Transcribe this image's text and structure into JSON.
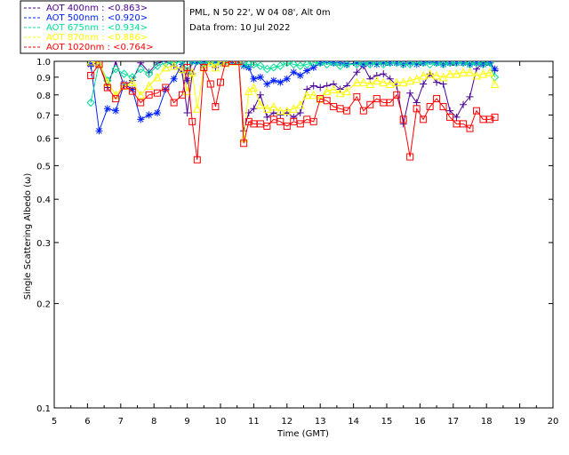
{
  "header": {
    "site_line": "PML, N 50 22', W 04 08', Alt 0m",
    "date_line": "Data from: 10 Jul 2022"
  },
  "chart_data": {
    "type": "line",
    "title": "",
    "xlabel": "Time (GMT)",
    "ylabel": "Single Scattering Albedo (ω)",
    "xlim": [
      5,
      20
    ],
    "ylim": [
      0.1,
      1.0
    ],
    "yscale": "log",
    "x_ticks": [
      5,
      6,
      7,
      8,
      9,
      10,
      11,
      12,
      13,
      14,
      15,
      16,
      17,
      18,
      19,
      20
    ],
    "x_tick_labels": [
      "5",
      "6",
      "7",
      "8",
      "9",
      "10",
      "11",
      "12",
      "13",
      "14",
      "15",
      "16",
      "17",
      "18",
      "19",
      "20"
    ],
    "y_ticks": [
      0.1,
      0.2,
      0.3,
      0.4,
      0.5,
      0.6,
      0.7,
      0.8,
      0.9,
      1.0
    ],
    "y_tick_labels": [
      "0.1",
      "0.2",
      "0.3",
      "0.4",
      "0.5",
      "0.6",
      "0.7",
      "0.8",
      "0.9",
      "1.0"
    ],
    "series": [
      {
        "name": "AOT  400nm : <0.863>",
        "color": "#4b0096",
        "marker": "plus",
        "x": [
          6.1,
          6.35,
          6.6,
          6.85,
          7.1,
          7.35,
          7.6,
          7.85,
          8.1,
          8.35,
          8.6,
          8.85,
          9.0,
          9.15,
          9.3,
          9.5,
          9.7,
          9.85,
          10.0,
          10.15,
          10.35,
          10.55,
          10.7,
          10.85,
          11.0,
          11.2,
          11.4,
          11.6,
          11.8,
          12.0,
          12.2,
          12.4,
          12.6,
          12.8,
          13.0,
          13.2,
          13.4,
          13.6,
          13.8,
          14.1,
          14.3,
          14.5,
          14.7,
          14.9,
          15.1,
          15.3,
          15.5,
          15.7,
          15.9,
          16.1,
          16.3,
          16.5,
          16.7,
          16.9,
          17.1,
          17.3,
          17.5,
          17.7,
          17.9,
          18.1,
          18.25
        ],
        "y": [
          0.97,
          1.0,
          0.84,
          1.0,
          0.85,
          0.88,
          0.99,
          0.93,
          0.99,
          1.0,
          0.97,
          0.93,
          0.71,
          0.92,
          1.0,
          0.96,
          1.0,
          0.96,
          1.0,
          1.0,
          1.0,
          1.0,
          0.63,
          0.71,
          0.73,
          0.8,
          0.69,
          0.71,
          0.7,
          0.71,
          0.69,
          0.71,
          0.83,
          0.85,
          0.84,
          0.85,
          0.86,
          0.83,
          0.85,
          0.93,
          0.97,
          0.89,
          0.91,
          0.92,
          0.89,
          0.85,
          0.66,
          0.81,
          0.76,
          0.86,
          0.92,
          0.87,
          0.86,
          0.72,
          0.69,
          0.75,
          0.79,
          0.95,
          0.99,
          1.0,
          0.94
        ]
      },
      {
        "name": "AOT  500nm : <0.920>",
        "color": "#0020ff",
        "marker": "star",
        "x": [
          6.1,
          6.35,
          6.6,
          6.85,
          7.1,
          7.35,
          7.6,
          7.85,
          8.1,
          8.35,
          8.6,
          8.85,
          9.0,
          9.15,
          9.3,
          9.5,
          9.7,
          9.85,
          10.0,
          10.15,
          10.35,
          10.55,
          10.7,
          10.85,
          11.0,
          11.2,
          11.4,
          11.6,
          11.8,
          12.0,
          12.2,
          12.4,
          12.6,
          12.8,
          13.0,
          13.2,
          13.4,
          13.6,
          13.8,
          14.1,
          14.3,
          14.5,
          14.7,
          14.9,
          15.1,
          15.3,
          15.5,
          15.7,
          15.9,
          16.1,
          16.3,
          16.5,
          16.7,
          16.9,
          17.1,
          17.3,
          17.5,
          17.7,
          17.9,
          18.1,
          18.25
        ],
        "y": [
          0.98,
          0.63,
          0.73,
          0.72,
          0.86,
          0.83,
          0.68,
          0.7,
          0.71,
          0.83,
          0.89,
          0.98,
          0.88,
          1.0,
          1.0,
          0.99,
          1.0,
          1.0,
          0.99,
          1.0,
          1.0,
          1.0,
          0.97,
          0.96,
          0.89,
          0.9,
          0.86,
          0.88,
          0.87,
          0.89,
          0.93,
          0.91,
          0.94,
          0.96,
          0.99,
          1.0,
          0.99,
          0.99,
          0.98,
          0.99,
          0.98,
          0.99,
          0.98,
          0.99,
          0.99,
          0.99,
          0.98,
          0.99,
          0.98,
          0.99,
          1.0,
          0.99,
          0.98,
          0.99,
          0.99,
          0.99,
          0.98,
          0.99,
          0.98,
          0.99,
          0.95
        ]
      },
      {
        "name": "AOT  675nm : <0.934>",
        "color": "#00e096",
        "marker": "diamond",
        "x": [
          6.1,
          6.35,
          6.6,
          6.85,
          7.1,
          7.35,
          7.6,
          7.85,
          8.1,
          8.35,
          8.6,
          8.85,
          9.0,
          9.15,
          9.3,
          9.5,
          9.7,
          9.85,
          10.0,
          10.15,
          10.35,
          10.55,
          10.7,
          10.85,
          11.0,
          11.2,
          11.4,
          11.6,
          11.8,
          12.0,
          12.2,
          12.4,
          12.6,
          12.8,
          13.0,
          13.2,
          13.4,
          13.6,
          13.8,
          14.1,
          14.3,
          14.5,
          14.7,
          14.9,
          15.1,
          15.3,
          15.5,
          15.7,
          15.9,
          16.1,
          16.3,
          16.5,
          16.7,
          16.9,
          17.1,
          17.3,
          17.5,
          17.7,
          17.9,
          18.1,
          18.25
        ],
        "y": [
          0.76,
          0.99,
          0.88,
          0.95,
          0.92,
          0.9,
          0.95,
          0.92,
          0.97,
          0.99,
          0.99,
          1.0,
          0.94,
          1.0,
          1.0,
          0.99,
          1.0,
          1.0,
          1.0,
          1.0,
          1.0,
          1.0,
          0.98,
          0.98,
          0.98,
          0.97,
          0.95,
          0.96,
          0.97,
          0.99,
          0.98,
          0.97,
          0.98,
          0.99,
          0.99,
          0.98,
          0.99,
          0.97,
          0.98,
          0.98,
          0.99,
          0.98,
          0.99,
          0.98,
          0.99,
          0.99,
          0.98,
          0.98,
          0.99,
          0.99,
          0.98,
          0.99,
          0.98,
          0.99,
          0.99,
          0.99,
          0.98,
          0.99,
          0.98,
          0.99,
          0.9
        ]
      },
      {
        "name": "AOT  870nm : <0.886>",
        "color": "#ffff00",
        "marker": "triangle",
        "x": [
          6.1,
          6.35,
          6.6,
          6.85,
          7.1,
          7.35,
          7.6,
          7.85,
          8.1,
          8.35,
          8.6,
          8.85,
          9.0,
          9.15,
          9.3,
          9.5,
          9.7,
          9.85,
          10.0,
          10.15,
          10.35,
          10.55,
          10.7,
          10.85,
          11.0,
          11.2,
          11.4,
          11.6,
          11.8,
          12.0,
          12.2,
          12.4,
          12.6,
          12.8,
          13.0,
          13.2,
          13.4,
          13.6,
          13.8,
          14.1,
          14.3,
          14.5,
          14.7,
          14.9,
          15.1,
          15.3,
          15.5,
          15.7,
          15.9,
          16.1,
          16.3,
          16.5,
          16.7,
          16.9,
          17.1,
          17.3,
          17.5,
          17.7,
          17.9,
          18.1,
          18.25
        ],
        "y": [
          1.0,
          0.99,
          0.87,
          0.8,
          0.85,
          0.87,
          0.8,
          0.85,
          0.9,
          0.96,
          0.97,
          0.95,
          0.82,
          0.93,
          0.73,
          0.96,
          0.99,
          0.96,
          1.0,
          0.99,
          1.0,
          1.0,
          0.6,
          0.82,
          0.84,
          0.75,
          0.73,
          0.74,
          0.72,
          0.72,
          0.73,
          0.75,
          0.8,
          0.8,
          0.78,
          0.82,
          0.83,
          0.81,
          0.82,
          0.87,
          0.87,
          0.86,
          0.88,
          0.87,
          0.86,
          0.87,
          0.87,
          0.88,
          0.89,
          0.91,
          0.92,
          0.91,
          0.9,
          0.92,
          0.92,
          0.93,
          0.93,
          0.91,
          0.92,
          0.93,
          0.86
        ]
      },
      {
        "name": "AOT 1020nm : <0.764>",
        "color": "#ff0000",
        "marker": "square",
        "x": [
          6.1,
          6.35,
          6.6,
          6.85,
          7.1,
          7.35,
          7.6,
          7.85,
          8.1,
          8.35,
          8.6,
          8.85,
          9.0,
          9.15,
          9.3,
          9.5,
          9.7,
          9.85,
          10.0,
          10.15,
          10.35,
          10.55,
          10.7,
          10.85,
          11.0,
          11.2,
          11.4,
          11.6,
          11.8,
          12.0,
          12.2,
          12.4,
          12.6,
          12.8,
          13.0,
          13.2,
          13.4,
          13.6,
          13.8,
          14.1,
          14.3,
          14.5,
          14.7,
          14.9,
          15.1,
          15.3,
          15.5,
          15.7,
          15.9,
          16.1,
          16.3,
          16.5,
          16.7,
          16.9,
          17.1,
          17.3,
          17.5,
          17.7,
          17.9,
          18.1,
          18.25
        ],
        "y": [
          0.91,
          0.98,
          0.84,
          0.78,
          0.85,
          0.82,
          0.76,
          0.8,
          0.81,
          0.84,
          0.76,
          0.8,
          0.96,
          0.67,
          0.52,
          0.96,
          0.86,
          0.74,
          0.87,
          0.99,
          1.0,
          1.0,
          0.58,
          0.67,
          0.66,
          0.66,
          0.65,
          0.68,
          0.67,
          0.65,
          0.67,
          0.66,
          0.68,
          0.67,
          0.78,
          0.77,
          0.74,
          0.73,
          0.72,
          0.79,
          0.72,
          0.75,
          0.78,
          0.76,
          0.76,
          0.8,
          0.68,
          0.53,
          0.73,
          0.68,
          0.74,
          0.78,
          0.74,
          0.69,
          0.66,
          0.66,
          0.64,
          0.72,
          0.68,
          0.68,
          0.69
        ]
      }
    ]
  }
}
